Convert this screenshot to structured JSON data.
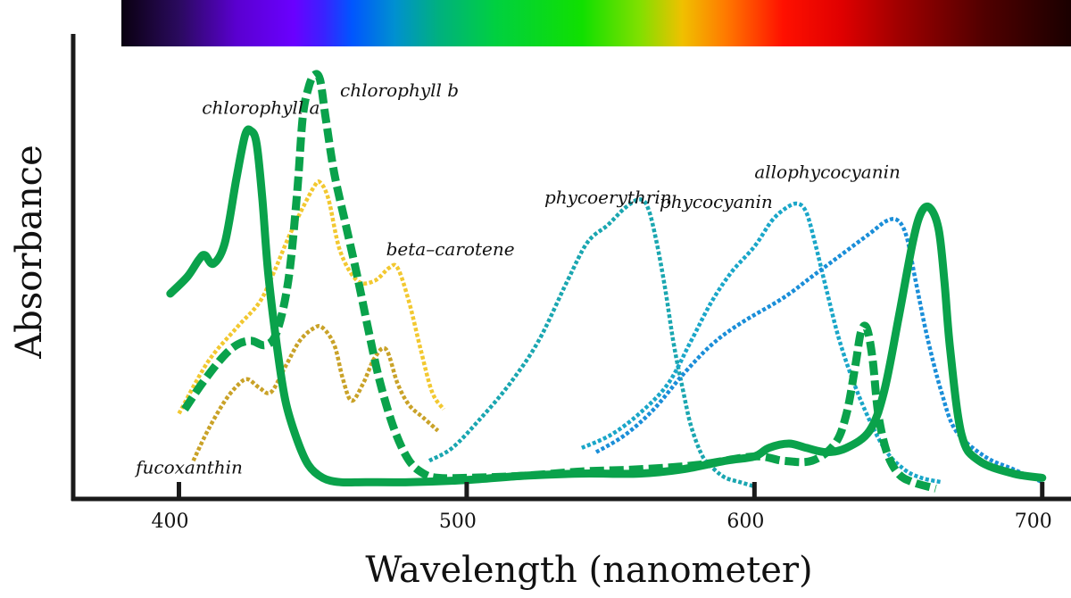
{
  "chart_data": {
    "type": "line",
    "title": "",
    "xlabel": "Wavelength (nanometer)",
    "ylabel": "Absorbance",
    "xlim": [
      380,
      710
    ],
    "ylim": [
      0,
      1
    ],
    "x_ticks": [
      400,
      500,
      600,
      700
    ],
    "grid": false,
    "legend": "none",
    "spectrum_bar": {
      "range": [
        380,
        710
      ],
      "stops": [
        {
          "nm": 380,
          "color": "#0a0010"
        },
        {
          "nm": 400,
          "color": "#2a0a5e"
        },
        {
          "nm": 420,
          "color": "#5a00d0"
        },
        {
          "nm": 440,
          "color": "#6a00ff"
        },
        {
          "nm": 450,
          "color": "#3c20ff"
        },
        {
          "nm": 460,
          "color": "#0055ff"
        },
        {
          "nm": 475,
          "color": "#0090d0"
        },
        {
          "nm": 490,
          "color": "#00b080"
        },
        {
          "nm": 510,
          "color": "#00d040"
        },
        {
          "nm": 540,
          "color": "#10e000"
        },
        {
          "nm": 560,
          "color": "#80e000"
        },
        {
          "nm": 575,
          "color": "#f0c000"
        },
        {
          "nm": 590,
          "color": "#ff7a00"
        },
        {
          "nm": 610,
          "color": "#ff1000"
        },
        {
          "nm": 630,
          "color": "#e00000"
        },
        {
          "nm": 650,
          "color": "#a00000"
        },
        {
          "nm": 680,
          "color": "#500000"
        },
        {
          "nm": 710,
          "color": "#1a0000"
        }
      ]
    },
    "series": [
      {
        "name": "chlorophyll a",
        "color": "#0aa24b",
        "style": "solid",
        "x": [
          397,
          403,
          407,
          409,
          412,
          416,
          420,
          423,
          425,
          427,
          429,
          431,
          434,
          437,
          441,
          445,
          450,
          456,
          465,
          480,
          500,
          520,
          540,
          560,
          575,
          590,
          600,
          605,
          612,
          618,
          625,
          632,
          640,
          645,
          650,
          655,
          658,
          661,
          664,
          666,
          668,
          672,
          678,
          690,
          700
        ],
        "y": [
          0.45,
          0.49,
          0.53,
          0.54,
          0.52,
          0.57,
          0.72,
          0.82,
          0.83,
          0.8,
          0.67,
          0.5,
          0.33,
          0.2,
          0.11,
          0.05,
          0.02,
          0.01,
          0.01,
          0.01,
          0.015,
          0.025,
          0.03,
          0.03,
          0.04,
          0.06,
          0.07,
          0.09,
          0.1,
          0.09,
          0.08,
          0.09,
          0.13,
          0.22,
          0.39,
          0.57,
          0.64,
          0.65,
          0.6,
          0.48,
          0.32,
          0.12,
          0.06,
          0.03,
          0.02
        ]
      },
      {
        "name": "chlorophyll b",
        "color": "#0aa24b",
        "style": "dashed",
        "x": [
          402,
          408,
          415,
          420,
          425,
          430,
          434,
          438,
          441,
          443,
          445,
          447,
          449,
          451,
          454,
          458,
          462,
          466,
          470,
          475,
          480,
          485,
          490,
          500,
          520,
          540,
          560,
          580,
          600,
          610,
          620,
          628,
          632,
          635,
          637,
          639,
          641,
          643,
          646,
          650,
          655,
          663
        ],
        "y": [
          0.18,
          0.24,
          0.3,
          0.33,
          0.34,
          0.33,
          0.36,
          0.48,
          0.68,
          0.86,
          0.93,
          0.96,
          0.95,
          0.86,
          0.73,
          0.61,
          0.49,
          0.36,
          0.24,
          0.13,
          0.06,
          0.03,
          0.02,
          0.02,
          0.025,
          0.035,
          0.04,
          0.05,
          0.07,
          0.06,
          0.06,
          0.1,
          0.17,
          0.28,
          0.36,
          0.37,
          0.3,
          0.17,
          0.08,
          0.03,
          0.01,
          -0.005
        ]
      },
      {
        "name": "beta-carotene",
        "color": "#f2c830",
        "style": "dotted",
        "x": [
          400,
          410,
          420,
          428,
          433,
          438,
          443,
          447,
          449,
          452,
          456,
          462,
          468,
          473,
          476,
          480,
          484,
          488,
          492
        ],
        "y": [
          0.17,
          0.29,
          0.37,
          0.43,
          0.5,
          0.58,
          0.65,
          0.7,
          0.71,
          0.67,
          0.55,
          0.48,
          0.48,
          0.51,
          0.51,
          0.43,
          0.32,
          0.22,
          0.18
        ]
      },
      {
        "name": "fucoxanthin",
        "color": "#c9a228",
        "style": "dotted",
        "x": [
          405,
          410,
          416,
          421,
          424,
          428,
          432,
          437,
          442,
          447,
          450,
          454,
          457,
          460,
          464,
          468,
          472,
          476,
          480,
          485,
          490
        ],
        "y": [
          0.06,
          0.13,
          0.2,
          0.24,
          0.25,
          0.23,
          0.22,
          0.28,
          0.34,
          0.37,
          0.37,
          0.33,
          0.25,
          0.2,
          0.24,
          0.3,
          0.32,
          0.24,
          0.19,
          0.16,
          0.13
        ]
      },
      {
        "name": "phycoerythrin",
        "color": "#1aa6b0",
        "style": "dotted",
        "x": [
          487,
          495,
          505,
          515,
          525,
          535,
          542,
          549,
          555,
          560,
          563,
          566,
          569,
          572,
          575,
          578,
          582,
          586,
          590,
          595,
          600
        ],
        "y": [
          0.06,
          0.09,
          0.16,
          0.24,
          0.34,
          0.48,
          0.57,
          0.61,
          0.65,
          0.67,
          0.65,
          0.57,
          0.46,
          0.33,
          0.23,
          0.14,
          0.07,
          0.04,
          0.02,
          0.01,
          0.0
        ]
      },
      {
        "name": "phycocyanin",
        "color": "#1aa6c8",
        "style": "dotted",
        "x": [
          540,
          550,
          560,
          570,
          578,
          585,
          592,
          600,
          606,
          611,
          615,
          618,
          621,
          625,
          630,
          637,
          645,
          652,
          658,
          665
        ],
        "y": [
          0.09,
          0.12,
          0.17,
          0.24,
          0.34,
          0.43,
          0.5,
          0.56,
          0.62,
          0.65,
          0.66,
          0.64,
          0.57,
          0.46,
          0.33,
          0.2,
          0.09,
          0.04,
          0.02,
          0.01
        ]
      },
      {
        "name": "allophycocyanin",
        "color": "#1a8ed8",
        "style": "dotted",
        "x": [
          545,
          555,
          565,
          575,
          585,
          595,
          610,
          620,
          630,
          640,
          646,
          650,
          653,
          656,
          660,
          665,
          670,
          680,
          690,
          700
        ],
        "y": [
          0.08,
          0.12,
          0.18,
          0.26,
          0.33,
          0.38,
          0.44,
          0.49,
          0.54,
          0.59,
          0.62,
          0.62,
          0.58,
          0.48,
          0.35,
          0.22,
          0.13,
          0.07,
          0.04,
          0.01
        ]
      }
    ],
    "annotations": [
      {
        "text": "chlorophyll a",
        "x": 408,
        "y": 0.87,
        "anchor": "start"
      },
      {
        "text": "chlorophyll b",
        "x": 456,
        "y": 0.91,
        "anchor": "start"
      },
      {
        "text": "beta–carotene",
        "x": 472,
        "y": 0.54,
        "anchor": "start"
      },
      {
        "text": "fucoxanthin",
        "x": 385,
        "y": 0.03,
        "anchor": "start"
      },
      {
        "text": "phycoerythrin",
        "x": 527,
        "y": 0.66,
        "anchor": "start"
      },
      {
        "text": "phycocyanin",
        "x": 567,
        "y": 0.65,
        "anchor": "start"
      },
      {
        "text": "allophycocyanin",
        "x": 600,
        "y": 0.72,
        "anchor": "start"
      }
    ]
  }
}
